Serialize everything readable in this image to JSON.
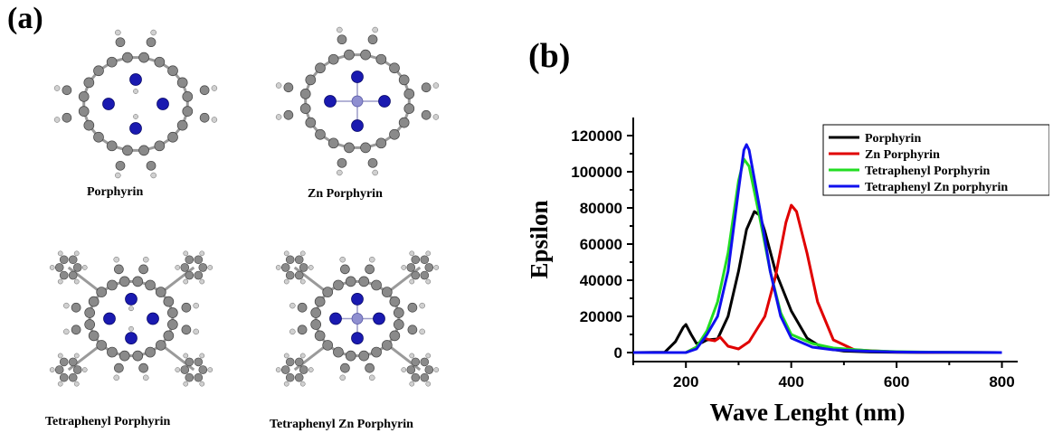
{
  "panels": {
    "a": "(a)",
    "b": "(b)"
  },
  "molecules": [
    {
      "name": "Porphyrin",
      "has_zn": false,
      "phenyl": false
    },
    {
      "name": "Zn Porphyrin",
      "has_zn": true,
      "phenyl": false
    },
    {
      "name": "Tetraphenyl Porphyrin",
      "has_zn": false,
      "phenyl": true
    },
    {
      "name": "Tetraphenyl Zn Porphyrin",
      "has_zn": true,
      "phenyl": true
    }
  ],
  "colors": {
    "carbon": "#8a8a8a",
    "hydrogen": "#d0d0d0",
    "nitrogen": "#1a1ab0",
    "zinc": "#8f8fd0"
  },
  "chart_data": {
    "type": "line",
    "xlabel": "Wave Lenght (nm)",
    "ylabel": "Epsilon",
    "xlim": [
      100,
      830
    ],
    "ylim": [
      -5000,
      130000
    ],
    "xticks": [
      200,
      400,
      600,
      800
    ],
    "yticks": [
      0,
      20000,
      40000,
      60000,
      80000,
      100000,
      120000
    ],
    "legend_position": "top-right",
    "series": [
      {
        "name": "Porphyrin",
        "color": "#000000",
        "x": [
          100,
          160,
          180,
          195,
          200,
          210,
          220,
          230,
          240,
          260,
          280,
          300,
          315,
          330,
          340,
          350,
          370,
          400,
          430,
          460,
          500,
          550,
          600,
          700,
          800
        ],
        "y": [
          0,
          200,
          6000,
          14000,
          15500,
          10000,
          5000,
          5500,
          7000,
          7500,
          20000,
          45000,
          68000,
          78000,
          76000,
          67000,
          45000,
          23000,
          8000,
          2500,
          800,
          300,
          100,
          50,
          0
        ]
      },
      {
        "name": "Zn Porphyrin",
        "color": "#e00000",
        "x": [
          100,
          200,
          220,
          235,
          245,
          255,
          265,
          280,
          300,
          320,
          350,
          370,
          390,
          400,
          410,
          430,
          450,
          480,
          520,
          600,
          700,
          800
        ],
        "y": [
          0,
          0,
          3000,
          8000,
          7000,
          6500,
          8500,
          3500,
          2000,
          6000,
          20000,
          42000,
          72000,
          81500,
          78000,
          55000,
          28000,
          7000,
          1500,
          300,
          50,
          0
        ]
      },
      {
        "name": "Tetraphenyl Porphyrin",
        "color": "#22dd22",
        "x": [
          100,
          200,
          220,
          240,
          260,
          280,
          300,
          310,
          320,
          340,
          360,
          380,
          400,
          440,
          480,
          550,
          600,
          700,
          800
        ],
        "y": [
          0,
          0,
          3000,
          12000,
          28000,
          55000,
          95000,
          107000,
          103000,
          75000,
          45000,
          22000,
          10000,
          5000,
          2500,
          1000,
          500,
          100,
          0
        ]
      },
      {
        "name": "Tetraphenyl Zn porphyrin",
        "color": "#1010ee",
        "x": [
          100,
          200,
          220,
          240,
          260,
          280,
          300,
          310,
          315,
          320,
          340,
          360,
          380,
          400,
          440,
          480,
          550,
          600,
          700,
          800
        ],
        "y": [
          0,
          0,
          2000,
          10000,
          20000,
          45000,
          90000,
          112000,
          115000,
          112000,
          80000,
          45000,
          20000,
          8000,
          3000,
          1500,
          700,
          300,
          100,
          0
        ]
      }
    ]
  }
}
